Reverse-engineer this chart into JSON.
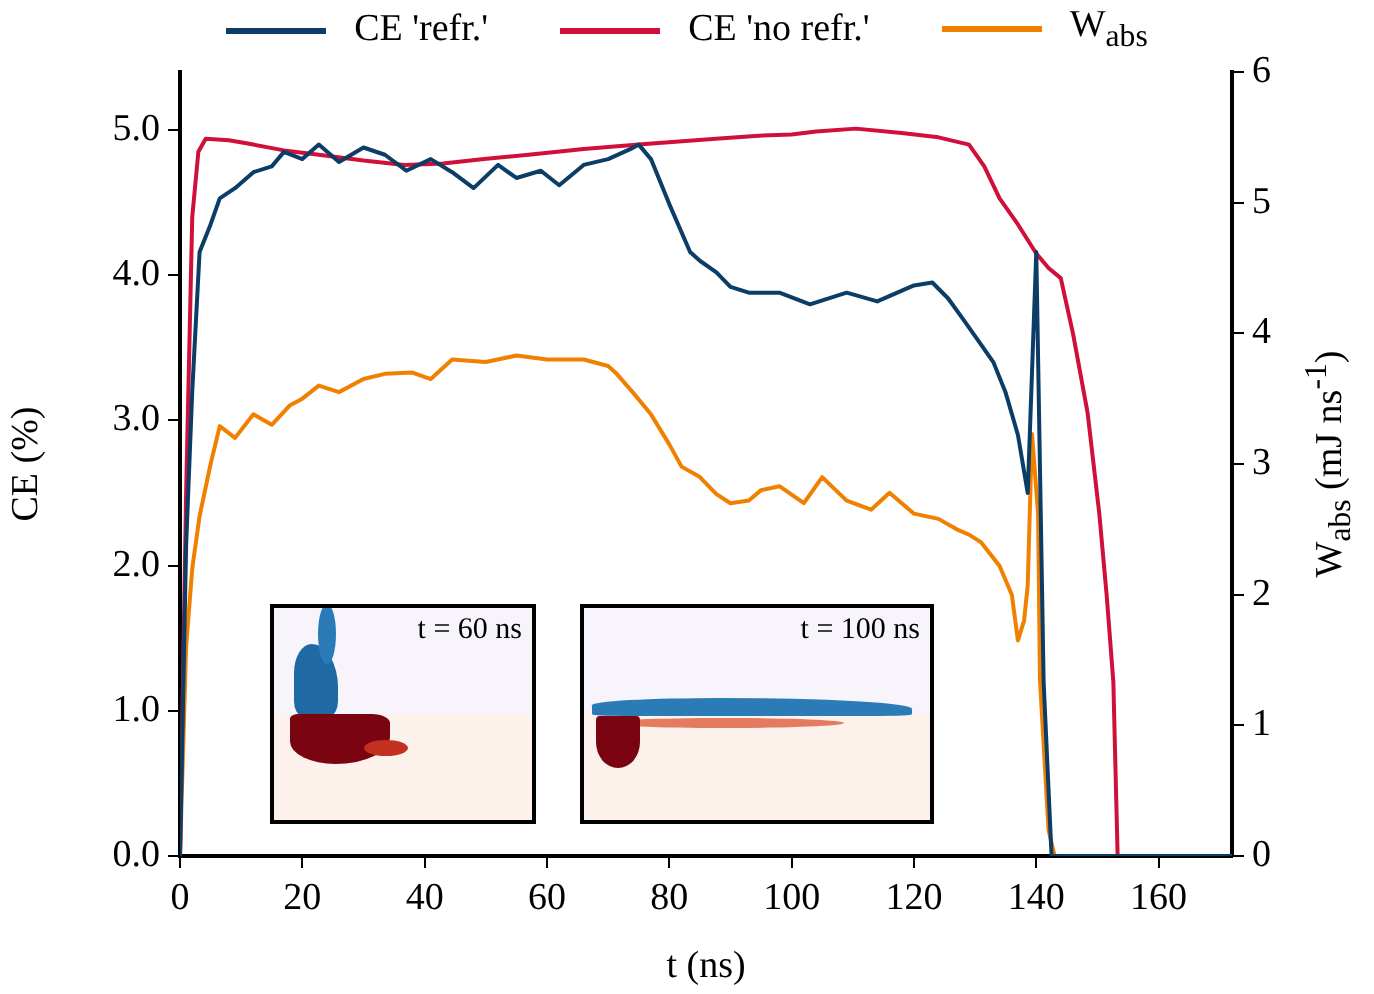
{
  "chart_data": {
    "type": "line",
    "xlabel": "t (ns)",
    "ylabel": "CE (%)",
    "y2label": "W$_{abs}$ (mJ ns$^{-1}$)",
    "xlim": [
      0,
      172
    ],
    "xticks": [
      0,
      20,
      40,
      60,
      80,
      100,
      120,
      140,
      160
    ],
    "ylim": [
      0,
      5.4
    ],
    "yticks": [
      {
        "value": 0,
        "label": "0.0"
      },
      {
        "value": 1,
        "label": "1.0"
      },
      {
        "value": 2,
        "label": "2.0"
      },
      {
        "value": 3,
        "label": "3.0"
      },
      {
        "value": 4,
        "label": "4.0"
      },
      {
        "value": 5,
        "label": "5.0"
      }
    ],
    "y2lim": [
      0,
      6
    ],
    "y2ticks": [
      0,
      1,
      2,
      3,
      4,
      5,
      6
    ],
    "grid": false,
    "legend": "top",
    "marker": "none",
    "line_style": "solid",
    "annotations": [
      "t = 60 ns",
      "t = 100 ns"
    ],
    "series": [
      {
        "name": "CE 'refr.'",
        "color": "#0b3d66",
        "x": [
          0,
          1,
          2,
          3.2,
          5,
          6.5,
          9,
          12,
          15,
          17,
          20,
          22.7,
          26,
          30,
          33.5,
          37,
          41,
          44.5,
          48,
          52,
          55,
          59,
          62,
          66,
          70,
          73.7,
          75,
          77,
          80,
          83.4,
          85,
          87.7,
          90,
          93,
          98,
          103,
          109,
          114,
          120,
          123,
          125.6,
          128,
          131,
          133,
          135,
          137,
          138.6,
          140,
          141.2,
          142.5,
          150,
          172
        ],
        "values": [
          0,
          2.14,
          3.2,
          4.16,
          4.35,
          4.53,
          4.6,
          4.71,
          4.75,
          4.85,
          4.8,
          4.9,
          4.78,
          4.88,
          4.83,
          4.72,
          4.8,
          4.71,
          4.6,
          4.76,
          4.67,
          4.72,
          4.62,
          4.76,
          4.8,
          4.87,
          4.9,
          4.8,
          4.49,
          4.16,
          4.1,
          4.02,
          3.92,
          3.88,
          3.88,
          3.8,
          3.88,
          3.82,
          3.93,
          3.95,
          3.84,
          3.7,
          3.52,
          3.4,
          3.19,
          2.9,
          2.5,
          4.16,
          1.2,
          0,
          0,
          0
        ]
      },
      {
        "name": "CE 'no refr.'",
        "color": "#d0103a",
        "x": [
          0,
          1,
          2,
          3,
          4.2,
          8,
          12,
          17,
          22.7,
          30,
          36.7,
          43,
          49.7,
          57,
          66,
          75,
          87.6,
          94,
          100,
          104,
          110.5,
          118,
          124,
          129,
          131.5,
          134,
          137,
          140,
          142,
          144,
          146,
          148.4,
          150.3,
          151.5,
          152.6,
          153.3,
          160,
          172
        ],
        "values": [
          0,
          2.5,
          4.4,
          4.85,
          4.94,
          4.93,
          4.9,
          4.86,
          4.83,
          4.79,
          4.76,
          4.77,
          4.8,
          4.83,
          4.87,
          4.9,
          4.94,
          4.96,
          4.97,
          4.99,
          5.01,
          4.98,
          4.95,
          4.9,
          4.75,
          4.53,
          4.35,
          4.15,
          4.05,
          3.98,
          3.6,
          3.05,
          2.36,
          1.8,
          1.2,
          0,
          0,
          0
        ]
      },
      {
        "name": "W$_{abs}$",
        "color": "#f08000",
        "axis": "y2",
        "x": [
          0,
          1,
          2,
          3.2,
          5,
          6.5,
          9,
          12,
          15,
          18,
          20,
          22.7,
          26,
          30,
          33.5,
          38,
          41,
          44.5,
          50,
          55,
          60,
          66,
          70,
          71.4,
          74,
          77,
          80,
          82,
          85,
          87.7,
          90,
          93,
          95,
          98,
          102,
          105,
          109,
          113,
          116,
          120,
          124,
          127,
          129,
          131,
          134,
          136,
          137,
          138,
          138.6,
          139.3,
          140.3,
          140.6,
          142,
          143,
          150,
          172
        ],
        "values": [
          0,
          1.6,
          2.2,
          2.6,
          3.0,
          3.29,
          3.2,
          3.38,
          3.3,
          3.45,
          3.5,
          3.6,
          3.55,
          3.65,
          3.69,
          3.7,
          3.65,
          3.8,
          3.78,
          3.83,
          3.8,
          3.8,
          3.75,
          3.69,
          3.55,
          3.38,
          3.15,
          2.98,
          2.9,
          2.77,
          2.7,
          2.72,
          2.8,
          2.83,
          2.7,
          2.9,
          2.72,
          2.65,
          2.78,
          2.62,
          2.58,
          2.5,
          2.46,
          2.4,
          2.22,
          2.0,
          1.65,
          1.8,
          2.07,
          3.23,
          2.62,
          1.35,
          0.2,
          0,
          0,
          0
        ]
      }
    ]
  }
}
